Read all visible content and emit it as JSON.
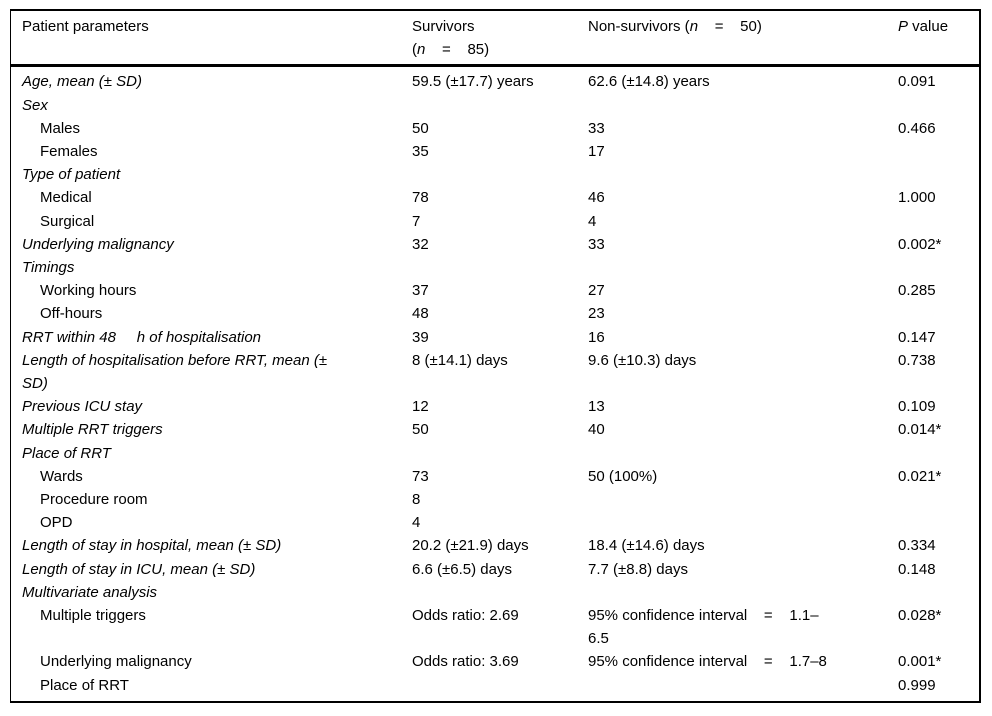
{
  "colors": {
    "text": "#000000",
    "border": "#000000",
    "background": "#ffffff"
  },
  "table": {
    "header": {
      "param": "Patient parameters",
      "survivors": {
        "line1": "Survivors",
        "open": "(",
        "n": "n",
        "rest": "    =    85)"
      },
      "nonsurvivors": {
        "pre": "Non-survivors (",
        "n": "n",
        "rest": "    =    50)"
      },
      "pvalue": {
        "p": "P",
        "rest": " value"
      }
    },
    "rows": [
      {
        "param": "Age, mean (± SD)",
        "survivors": "59.5 (±17.7) years",
        "nonsurvivors": "62.6 (±14.8) years",
        "p": "0.091"
      },
      {
        "param": "Sex"
      },
      {
        "param": "Males",
        "survivors": "50",
        "nonsurvivors": "33",
        "p": "0.466"
      },
      {
        "param": "Females",
        "survivors": "35",
        "nonsurvivors": "17"
      },
      {
        "param": "Type of patient"
      },
      {
        "param": "Medical",
        "survivors": "78",
        "nonsurvivors": "46",
        "p": "1.000"
      },
      {
        "param": "Surgical",
        "survivors": "7",
        "nonsurvivors": "4"
      },
      {
        "param": "Underlying malignancy",
        "survivors": "32",
        "nonsurvivors": "33",
        "p": "0.002*"
      },
      {
        "param": "Timings"
      },
      {
        "param": "Working hours",
        "survivors": "37",
        "nonsurvivors": "27",
        "p": "0.285"
      },
      {
        "param": "Off-hours",
        "survivors": "48",
        "nonsurvivors": "23"
      },
      {
        "param": "RRT within 48     h of hospitalisation",
        "survivors": "39",
        "nonsurvivors": "16",
        "p": "0.147"
      },
      {
        "param": "Length of hospitalisation before RRT, mean (±\nSD)",
        "survivors": "8 (±14.1) days",
        "nonsurvivors": "9.6 (±10.3) days",
        "p": "0.738"
      },
      {
        "param": "Previous ICU stay",
        "survivors": "12",
        "nonsurvivors": "13",
        "p": "0.109"
      },
      {
        "param": "Multiple RRT triggers",
        "survivors": "50",
        "nonsurvivors": "40",
        "p": "0.014*"
      },
      {
        "param": "Place of RRT"
      },
      {
        "param": "Wards",
        "survivors": "73",
        "nonsurvivors": "50 (100%)",
        "p": "0.021*"
      },
      {
        "param": "Procedure room",
        "survivors": "8"
      },
      {
        "param": "OPD",
        "survivors": "4"
      },
      {
        "param": "Length of stay in hospital, mean (± SD)",
        "survivors": "20.2 (±21.9) days",
        "nonsurvivors": "18.4 (±14.6) days",
        "p": "0.334"
      },
      {
        "param": "Length of stay in ICU, mean (± SD)",
        "survivors": "6.6 (±6.5) days",
        "nonsurvivors": "7.7 (±8.8) days",
        "p": "0.148"
      },
      {
        "param": "Multivariate analysis"
      },
      {
        "param": "Multiple triggers",
        "survivors": "Odds ratio: 2.69",
        "nonsurvivors": "95% confidence interval    =    1.1–\n6.5",
        "p": "0.028*"
      },
      {
        "param": "Underlying malignancy",
        "survivors": "Odds ratio: 3.69",
        "nonsurvivors": "95% confidence interval    =    1.7–8",
        "p": "0.001*"
      },
      {
        "param": "Place of RRT",
        "p": "0.999"
      }
    ]
  }
}
